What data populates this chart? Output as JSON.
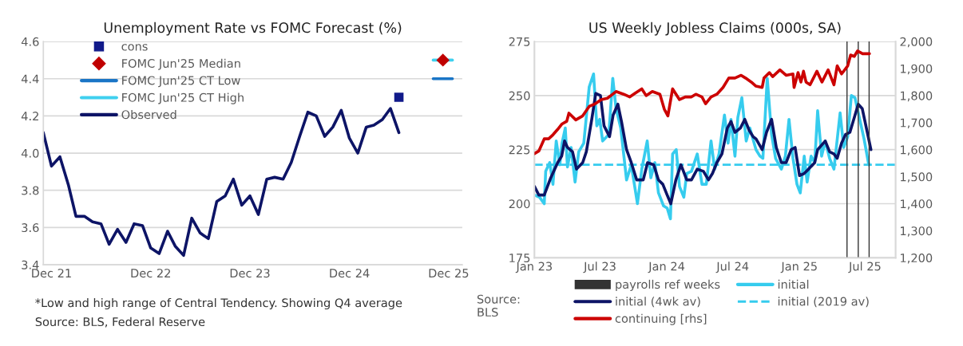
{
  "chart_data": [
    {
      "type": "line",
      "title": "Unemployment Rate vs FOMC Forecast (%)",
      "xlim": [
        "2021-11-01",
        "2026-01-20"
      ],
      "xticks": [
        {
          "value": "2021-12-01",
          "label": "Dec 21"
        },
        {
          "value": "2022-12-01",
          "label": "Dec 22"
        },
        {
          "value": "2023-12-01",
          "label": "Dec 23"
        },
        {
          "value": "2024-12-01",
          "label": "Dec 24"
        },
        {
          "value": "2025-12-01",
          "label": "Dec 25"
        }
      ],
      "ylim": [
        3.4,
        4.6
      ],
      "yticks": [
        {
          "value": 3.4,
          "label": "3.4"
        },
        {
          "value": 3.6,
          "label": "3.6"
        },
        {
          "value": 3.8,
          "label": "3.8"
        },
        {
          "value": 4.0,
          "label": "4.0"
        },
        {
          "value": 4.2,
          "label": "4.2"
        },
        {
          "value": 4.4,
          "label": "4.4"
        },
        {
          "value": 4.6,
          "label": "4.6"
        }
      ],
      "grid": "y",
      "legend": "top left",
      "series": [
        {
          "name": "cons",
          "type": "scatter",
          "marker": "square",
          "color": "#111a8a",
          "x": [
            "2025-06"
          ],
          "values": [
            4.3
          ]
        },
        {
          "name": "FOMC Jun'25 Median",
          "type": "scatter",
          "marker": "diamond",
          "color": "#c00000",
          "x": [
            "2025-11-10"
          ],
          "values": [
            4.5
          ]
        },
        {
          "name": "FOMC Jun'25 CT Low",
          "type": "line",
          "color": "#1a75c6",
          "x": [
            "2025-10-05",
            "2025-12-15"
          ],
          "values": [
            4.4,
            4.4
          ]
        },
        {
          "name": "FOMC Jun'25 CT High",
          "type": "line",
          "color": "#3fd0ef",
          "x": [
            "2025-10-05",
            "2025-12-15"
          ],
          "values": [
            4.5,
            4.5
          ]
        },
        {
          "name": "Observed",
          "type": "line",
          "color": "#0d1466",
          "x": [
            "2021-11",
            "2021-12",
            "2022-01",
            "2022-02",
            "2022-03",
            "2022-04",
            "2022-05",
            "2022-06",
            "2022-07",
            "2022-08",
            "2022-09",
            "2022-10",
            "2022-11",
            "2022-12",
            "2023-01",
            "2023-02",
            "2023-03",
            "2023-04",
            "2023-05",
            "2023-06",
            "2023-07",
            "2023-08",
            "2023-09",
            "2023-10",
            "2023-11",
            "2023-12",
            "2024-01",
            "2024-02",
            "2024-03",
            "2024-04",
            "2024-05",
            "2024-06",
            "2024-07",
            "2024-08",
            "2024-09",
            "2024-10",
            "2024-11",
            "2024-12",
            "2025-01",
            "2025-02",
            "2025-03",
            "2025-04",
            "2025-05",
            "2025-06"
          ],
          "values": [
            4.11,
            3.93,
            3.98,
            3.83,
            3.66,
            3.66,
            3.63,
            3.62,
            3.51,
            3.59,
            3.52,
            3.62,
            3.61,
            3.49,
            3.46,
            3.58,
            3.5,
            3.45,
            3.65,
            3.57,
            3.54,
            3.74,
            3.77,
            3.86,
            3.72,
            3.77,
            3.67,
            3.86,
            3.87,
            3.86,
            3.95,
            4.09,
            4.22,
            4.2,
            4.09,
            4.14,
            4.23,
            4.08,
            4.0,
            4.14,
            4.15,
            4.18,
            4.24,
            4.11
          ]
        }
      ],
      "annotations": [
        "*Low and high range of Central Tendency. Showing Q4 average",
        "Source: BLS, Federal Reserve"
      ]
    },
    {
      "type": "line",
      "title": "US Weekly Jobless Claims (000s, SA)",
      "xlim": [
        "2023-01-01",
        "2025-09-23"
      ],
      "xticks": [
        {
          "value": "2023-01-01",
          "label": "Jan 23"
        },
        {
          "value": "2023-07-01",
          "label": "Jul 23"
        },
        {
          "value": "2024-01-01",
          "label": "Jan 24"
        },
        {
          "value": "2024-07-01",
          "label": "Jul 24"
        },
        {
          "value": "2025-01-01",
          "label": "Jan 25"
        },
        {
          "value": "2025-07-01",
          "label": "Jul 25"
        }
      ],
      "ylim": [
        175,
        275
      ],
      "yticks": [
        175,
        200,
        225,
        250,
        275
      ],
      "y2lim": [
        1200,
        2000
      ],
      "y2ticks": [
        {
          "value": 1200,
          "label": "1,200"
        },
        {
          "value": 1300,
          "label": "1,300"
        },
        {
          "value": 1400,
          "label": "1,400"
        },
        {
          "value": 1500,
          "label": "1,500"
        },
        {
          "value": 1600,
          "label": "1,600"
        },
        {
          "value": 1700,
          "label": "1,700"
        },
        {
          "value": 1800,
          "label": "1,800"
        },
        {
          "value": 1900,
          "label": "1,900"
        },
        {
          "value": 2000,
          "label": "2,000"
        }
      ],
      "grid": "y",
      "legend": "bottom",
      "series": [
        {
          "name": "initial (4wk av)",
          "color": "#0d1466",
          "x": [
            "2023-01-01",
            "2023-01-13",
            "2023-01-28",
            "2023-02-15",
            "2023-03-06",
            "2023-03-17",
            "2023-03-25",
            "2023-04-02",
            "2023-04-16",
            "2023-04-27",
            "2023-05-14",
            "2023-05-24",
            "2023-06-08",
            "2023-06-19",
            "2023-07-02",
            "2023-07-12",
            "2023-07-27",
            "2023-08-06",
            "2023-08-19",
            "2023-08-29",
            "2023-09-12",
            "2023-09-25",
            "2023-10-10",
            "2023-10-28",
            "2023-11-09",
            "2023-11-26",
            "2023-12-09",
            "2023-12-21",
            "2024-01-02",
            "2024-01-12",
            "2024-01-26",
            "2024-02-09",
            "2024-02-25",
            "2024-03-09",
            "2024-03-25",
            "2024-04-11",
            "2024-04-25",
            "2024-05-06",
            "2024-05-18",
            "2024-06-01",
            "2024-06-16",
            "2024-06-26",
            "2024-07-07",
            "2024-07-22",
            "2024-08-03",
            "2024-08-15",
            "2024-08-26",
            "2024-09-03",
            "2024-09-20",
            "2024-10-02",
            "2024-10-16",
            "2024-10-29",
            "2024-11-12",
            "2024-11-25",
            "2024-12-09",
            "2024-12-20",
            "2025-01-01",
            "2025-01-14",
            "2025-01-26",
            "2025-02-12",
            "2025-02-20",
            "2025-03-13",
            "2025-03-25",
            "2025-04-06",
            "2025-04-15",
            "2025-04-27",
            "2025-05-08",
            "2025-05-20",
            "2025-06-12",
            "2025-06-23",
            "2025-07-07",
            "2025-07-17"
          ],
          "values": [
            208,
            204,
            204,
            212,
            219,
            222,
            229,
            226,
            224,
            216,
            219,
            224,
            239,
            251,
            250,
            236,
            231,
            241,
            246,
            238,
            225,
            219,
            211,
            211,
            219,
            218,
            211,
            209,
            204,
            200,
            211,
            218,
            211,
            211,
            216,
            215,
            211,
            214,
            219,
            223,
            235,
            238,
            233,
            235,
            239,
            234,
            231,
            230,
            225,
            233,
            239,
            226,
            219,
            219,
            225,
            226,
            213,
            214,
            216,
            219,
            225,
            229,
            224,
            223,
            221,
            228,
            232,
            233,
            246,
            244,
            233,
            225
          ]
        },
        {
          "name": "continuing [rhs]",
          "color": "#cc0000",
          "axis": "y2",
          "x": [
            "2023-01-01",
            "2023-01-13",
            "2023-01-28",
            "2023-02-09",
            "2023-02-21",
            "2023-03-06",
            "2023-03-18",
            "2023-03-31",
            "2023-04-06",
            "2023-04-25",
            "2023-05-14",
            "2023-06-01",
            "2023-06-18",
            "2023-07-04",
            "2023-07-21",
            "2023-08-14",
            "2023-09-04",
            "2023-09-21",
            "2023-10-07",
            "2023-10-24",
            "2023-11-05",
            "2023-11-22",
            "2023-12-13",
            "2023-12-25",
            "2024-01-04",
            "2024-01-17",
            "2024-02-05",
            "2024-02-21",
            "2024-03-09",
            "2024-03-21",
            "2024-04-07",
            "2024-04-17",
            "2024-05-02",
            "2024-05-18",
            "2024-06-04",
            "2024-06-20",
            "2024-07-07",
            "2024-07-24",
            "2024-08-05",
            "2024-08-21",
            "2024-09-03",
            "2024-09-20",
            "2024-09-25",
            "2024-10-10",
            "2024-10-19",
            "2024-11-08",
            "2024-11-25",
            "2024-12-14",
            "2024-12-17",
            "2024-12-28",
            "2025-01-05",
            "2025-01-12",
            "2025-01-19",
            "2025-01-30",
            "2025-02-18",
            "2025-03-04",
            "2025-03-21",
            "2025-04-06",
            "2025-04-15",
            "2025-04-27",
            "2025-05-14",
            "2025-05-22",
            "2025-06-01",
            "2025-06-10",
            "2025-06-24",
            "2025-07-13"
          ],
          "values": [
            1585,
            1595,
            1640,
            1640,
            1655,
            1675,
            1695,
            1705,
            1735,
            1710,
            1725,
            1760,
            1770,
            1785,
            1790,
            1815,
            1805,
            1795,
            1810,
            1825,
            1800,
            1815,
            1805,
            1750,
            1725,
            1825,
            1785,
            1795,
            1795,
            1805,
            1795,
            1770,
            1795,
            1805,
            1830,
            1865,
            1865,
            1875,
            1865,
            1850,
            1835,
            1830,
            1865,
            1885,
            1870,
            1895,
            1875,
            1880,
            1830,
            1885,
            1850,
            1890,
            1850,
            1840,
            1890,
            1850,
            1895,
            1840,
            1910,
            1880,
            1910,
            1950,
            1945,
            1965,
            1955,
            1955
          ]
        },
        {
          "name": "initial",
          "color": "#36ccee",
          "x": [
            "2023-01-01",
            "2023-01-15",
            "2023-01-28",
            "2023-02-01",
            "2023-02-12",
            "2023-02-21",
            "2023-03-02",
            "2023-03-12",
            "2023-03-18",
            "2023-03-27",
            "2023-04-02",
            "2023-04-12",
            "2023-04-23",
            "2023-05-03",
            "2023-05-17",
            "2023-06-01",
            "2023-06-13",
            "2023-06-22",
            "2023-06-30",
            "2023-07-08",
            "2023-07-25",
            "2023-08-05",
            "2023-08-14",
            "2023-08-27",
            "2023-09-12",
            "2023-09-25",
            "2023-10-12",
            "2023-10-24",
            "2023-11-08",
            "2023-11-18",
            "2023-11-29",
            "2023-12-09",
            "2023-12-23",
            "2024-01-02",
            "2024-01-11",
            "2024-01-17",
            "2024-01-27",
            "2024-02-05",
            "2024-02-17",
            "2024-02-25",
            "2024-03-09",
            "2024-03-25",
            "2024-04-07",
            "2024-04-19",
            "2024-05-02",
            "2024-05-12",
            "2024-05-24",
            "2024-06-08",
            "2024-06-18",
            "2024-06-26",
            "2024-07-07",
            "2024-07-15",
            "2024-07-26",
            "2024-08-07",
            "2024-08-17",
            "2024-09-03",
            "2024-09-14",
            "2024-09-22",
            "2024-10-04",
            "2024-10-16",
            "2024-10-27",
            "2024-11-12",
            "2024-11-23",
            "2024-12-03",
            "2024-12-14",
            "2024-12-25",
            "2025-01-03",
            "2025-01-14",
            "2025-01-22",
            "2025-02-02",
            "2025-02-12",
            "2025-02-20",
            "2025-03-03",
            "2025-03-13",
            "2025-03-25",
            "2025-04-06",
            "2025-04-23",
            "2025-05-03",
            "2025-05-14",
            "2025-05-24",
            "2025-06-03",
            "2025-06-16",
            "2025-06-28",
            "2025-07-11"
          ],
          "values": [
            204,
            203,
            200,
            215,
            219,
            209,
            229,
            218,
            228,
            235,
            217,
            226,
            210,
            224,
            228,
            254,
            260,
            236,
            239,
            229,
            232,
            258,
            244,
            235,
            211,
            218,
            200,
            216,
            229,
            212,
            219,
            205,
            199,
            198,
            193,
            223,
            225,
            208,
            203,
            214,
            215,
            223,
            209,
            209,
            229,
            216,
            223,
            241,
            228,
            239,
            222,
            240,
            249,
            229,
            235,
            225,
            222,
            221,
            258,
            232,
            221,
            216,
            222,
            239,
            221,
            209,
            205,
            222,
            210,
            222,
            219,
            243,
            222,
            229,
            221,
            216,
            242,
            226,
            231,
            250,
            249,
            239,
            230,
            218
          ]
        }
      ],
      "ref_lines": [
        {
          "axis": "x",
          "value": "2025-05-12",
          "label": "payrolls ref weeks",
          "color": "#333333"
        },
        {
          "axis": "x",
          "value": "2025-06-12",
          "color": "#333333"
        },
        {
          "axis": "x",
          "value": "2025-07-12",
          "color": "#333333"
        },
        {
          "axis": "y",
          "value": 218,
          "label": "initial (2019 av)",
          "color": "#36ccee",
          "line_style": "dashed"
        }
      ],
      "annotations": [
        "Source:\nBLS"
      ]
    }
  ]
}
